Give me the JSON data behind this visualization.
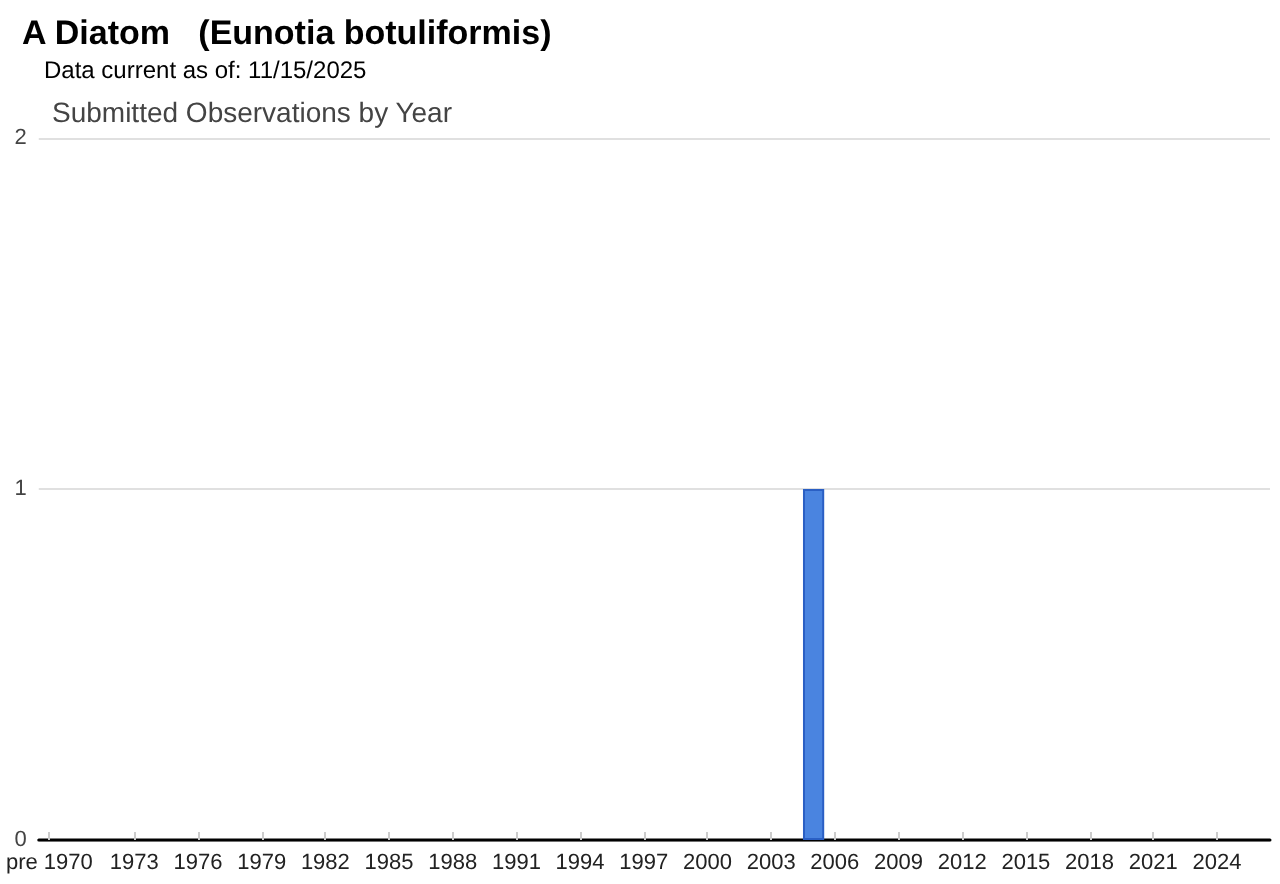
{
  "chart_data": {
    "type": "bar",
    "title": "A Diatom   (Eunotia botuliformis)",
    "subtitle": "Data current as of: 11/15/2025",
    "annotations": [
      "Submitted Observations by Year"
    ],
    "categories": [
      "pre 1970",
      null,
      null,
      null,
      "1973",
      null,
      null,
      "1976",
      null,
      null,
      "1979",
      null,
      null,
      "1982",
      null,
      null,
      "1985",
      null,
      null,
      "1988",
      null,
      null,
      "1991",
      null,
      null,
      "1994",
      null,
      null,
      "1997",
      null,
      null,
      "2000",
      null,
      null,
      "2003",
      null,
      null,
      "2006",
      null,
      null,
      "2009",
      null,
      null,
      "2012",
      null,
      null,
      "2015",
      null,
      null,
      "2018",
      null,
      null,
      "2021",
      null,
      null,
      "2024",
      null,
      null
    ],
    "values": [
      0,
      0,
      0,
      0,
      0,
      0,
      0,
      0,
      0,
      0,
      0,
      0,
      0,
      0,
      0,
      0,
      0,
      0,
      0,
      0,
      0,
      0,
      0,
      0,
      0,
      0,
      0,
      0,
      0,
      0,
      0,
      0,
      0,
      0,
      0,
      0,
      1,
      0,
      0,
      0,
      0,
      0,
      0,
      0,
      0,
      0,
      0,
      0,
      0,
      0,
      0,
      0,
      0,
      0,
      0,
      0,
      0,
      0
    ],
    "color": "#4a84e0",
    "ylim": [
      0,
      2
    ],
    "yticks": [
      0,
      1,
      2
    ],
    "grid": "y"
  }
}
